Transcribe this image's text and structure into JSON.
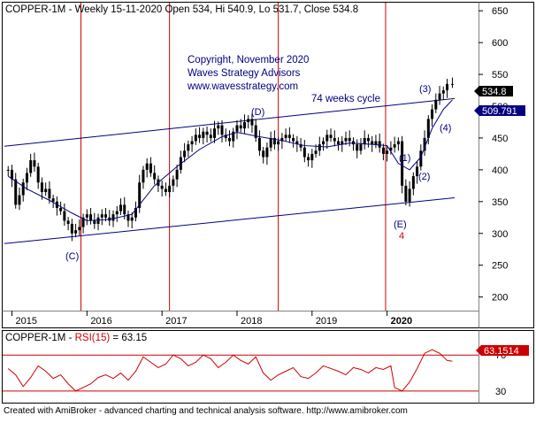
{
  "header": {
    "symbol": "COPPER-1M",
    "info": " - Weekly 15-11-2020 Open 534, Hi 540.9, Lo 531.7, Close 534.8"
  },
  "annotations": {
    "copyright": [
      "Copyright, November 2020",
      "Waves Strategy Advisors",
      "www.wavesstrategy.com"
    ],
    "cycle": "74 weeks cycle",
    "wave_labels": [
      "(C)",
      "(D)",
      "(E)",
      "4",
      "(1)",
      "(2)",
      "(3)",
      "(4)"
    ]
  },
  "price_tags": {
    "close": "534.8",
    "ma": "509.791"
  },
  "rsi": {
    "symbol": "COPPER-1M",
    "indicator": "RSI(15)",
    "value_text": " = 63.15",
    "tag": "63.1514"
  },
  "footer": "Created with AmiBroker - advanced charting and technical analysis software. http://www.amibroker.com",
  "colors": {
    "candles": "#000000",
    "moving_average": "#000080",
    "channel": "#000080",
    "cycle_lines": "#cc0000",
    "rsi": "#cc0000",
    "close_tag": "#000000",
    "ma_tag": "#000080",
    "rsi_tag": "#cc0000",
    "text_blue": "#000080"
  },
  "chart_data": [
    {
      "type": "candlestick",
      "timeframe": "weekly",
      "x_axis_labels": [
        "2015",
        "2016",
        "2017",
        "2018",
        "2019",
        "2020"
      ],
      "y_ticks": [
        200,
        250,
        300,
        350,
        400,
        450,
        500,
        550,
        600,
        650
      ],
      "ylim": [
        180,
        660
      ],
      "series": [
        {
          "x": [
            2014.95,
            2015.0,
            2015.05,
            2015.1,
            2015.15,
            2015.2,
            2015.25,
            2015.3,
            2015.35,
            2015.4,
            2015.45,
            2015.5,
            2015.55,
            2015.6,
            2015.65,
            2015.7,
            2015.75,
            2015.8,
            2015.85,
            2015.9,
            2015.95,
            2016.0,
            2016.05,
            2016.1,
            2016.15,
            2016.2,
            2016.25,
            2016.3,
            2016.35,
            2016.4,
            2016.45,
            2016.5,
            2016.55,
            2016.6,
            2016.65,
            2016.7,
            2016.75,
            2016.8,
            2016.85,
            2016.9,
            2016.95,
            2017.0,
            2017.05,
            2017.1,
            2017.15,
            2017.2,
            2017.25,
            2017.3,
            2017.35,
            2017.4,
            2017.45,
            2017.5,
            2017.55,
            2017.6,
            2017.65,
            2017.7,
            2017.75,
            2017.8,
            2017.85,
            2017.9,
            2017.95,
            2018.0,
            2018.05,
            2018.1,
            2018.15,
            2018.2,
            2018.25,
            2018.3,
            2018.35,
            2018.4,
            2018.45,
            2018.5,
            2018.55,
            2018.6,
            2018.65,
            2018.7,
            2018.75,
            2018.8,
            2018.85,
            2018.9,
            2018.95,
            2019.0,
            2019.05,
            2019.1,
            2019.15,
            2019.2,
            2019.25,
            2019.3,
            2019.35,
            2019.4,
            2019.45,
            2019.5,
            2019.55,
            2019.6,
            2019.65,
            2019.7,
            2019.75,
            2019.8,
            2019.85,
            2019.9,
            2019.95,
            2020.0,
            2020.05,
            2020.1,
            2020.15,
            2020.2,
            2020.25,
            2020.3,
            2020.35,
            2020.4,
            2020.45,
            2020.5,
            2020.55,
            2020.6,
            2020.65,
            2020.7,
            2020.75,
            2020.8,
            2020.87
          ],
          "close": [
            400,
            385,
            345,
            360,
            380,
            395,
            415,
            405,
            380,
            365,
            370,
            355,
            350,
            340,
            335,
            320,
            315,
            300,
            305,
            310,
            325,
            330,
            320,
            315,
            325,
            330,
            325,
            320,
            330,
            335,
            345,
            330,
            320,
            325,
            340,
            380,
            400,
            410,
            395,
            385,
            375,
            370,
            365,
            375,
            385,
            400,
            420,
            430,
            440,
            445,
            455,
            450,
            460,
            455,
            450,
            465,
            470,
            455,
            450,
            445,
            460,
            470,
            465,
            475,
            480,
            470,
            450,
            430,
            420,
            435,
            450,
            440,
            445,
            450,
            455,
            450,
            445,
            440,
            435,
            420,
            415,
            425,
            430,
            440,
            445,
            455,
            450,
            445,
            440,
            445,
            450,
            445,
            440,
            430,
            440,
            450,
            445,
            440,
            445,
            435,
            425,
            430,
            435,
            440,
            445,
            375,
            350,
            370,
            390,
            405,
            430,
            450,
            480,
            495,
            510,
            520,
            525,
            535,
            534.8
          ]
        }
      ],
      "moving_average": {
        "value_last": 509.791,
        "x": [
          2014.95,
          2015.2,
          2015.5,
          2015.8,
          2016.0,
          2016.3,
          2016.6,
          2016.9,
          2017.2,
          2017.5,
          2017.8,
          2018.0,
          2018.3,
          2018.6,
          2018.9,
          2019.2,
          2019.5,
          2019.8,
          2020.0,
          2020.15,
          2020.3,
          2020.45,
          2020.6,
          2020.75,
          2020.87
        ],
        "y": [
          390,
          370,
          352,
          332,
          320,
          322,
          330,
          375,
          405,
          432,
          452,
          459,
          452,
          446,
          438,
          436,
          442,
          440,
          438,
          410,
          400,
          420,
          465,
          495,
          509.8
        ]
      },
      "channel_lines": [
        {
          "x": [
            2014.9,
            2020.9
          ],
          "y": [
            284,
            356
          ]
        },
        {
          "x": [
            2014.9,
            2020.9
          ],
          "y": [
            437,
            512
          ]
        }
      ],
      "cycle_lines_x": [
        2015.92,
        2017.1,
        2018.55,
        2019.98
      ],
      "close": 534.8
    },
    {
      "type": "line",
      "name": "RSI(15)",
      "y_ticks": [
        30,
        70
      ],
      "ylim": [
        20,
        85
      ],
      "reference_levels": [
        30,
        70
      ],
      "x": [
        2014.95,
        2015.05,
        2015.15,
        2015.25,
        2015.35,
        2015.45,
        2015.55,
        2015.65,
        2015.75,
        2015.85,
        2015.95,
        2016.05,
        2016.15,
        2016.25,
        2016.35,
        2016.45,
        2016.55,
        2016.65,
        2016.75,
        2016.85,
        2016.95,
        2017.05,
        2017.15,
        2017.25,
        2017.35,
        2017.45,
        2017.55,
        2017.65,
        2017.75,
        2017.85,
        2017.95,
        2018.05,
        2018.15,
        2018.25,
        2018.35,
        2018.45,
        2018.55,
        2018.65,
        2018.75,
        2018.85,
        2018.95,
        2019.05,
        2019.15,
        2019.25,
        2019.35,
        2019.45,
        2019.55,
        2019.65,
        2019.75,
        2019.85,
        2019.95,
        2020.05,
        2020.1,
        2020.2,
        2020.3,
        2020.4,
        2020.5,
        2020.6,
        2020.7,
        2020.8,
        2020.87
      ],
      "values": [
        55,
        48,
        35,
        45,
        58,
        52,
        44,
        48,
        38,
        30,
        34,
        38,
        45,
        48,
        44,
        50,
        42,
        52,
        68,
        62,
        56,
        60,
        70,
        66,
        58,
        62,
        70,
        66,
        56,
        62,
        70,
        64,
        60,
        68,
        50,
        42,
        48,
        52,
        56,
        46,
        44,
        50,
        58,
        55,
        52,
        48,
        56,
        54,
        50,
        56,
        54,
        58,
        34,
        30,
        40,
        55,
        72,
        76,
        72,
        64,
        63.15
      ]
    }
  ]
}
